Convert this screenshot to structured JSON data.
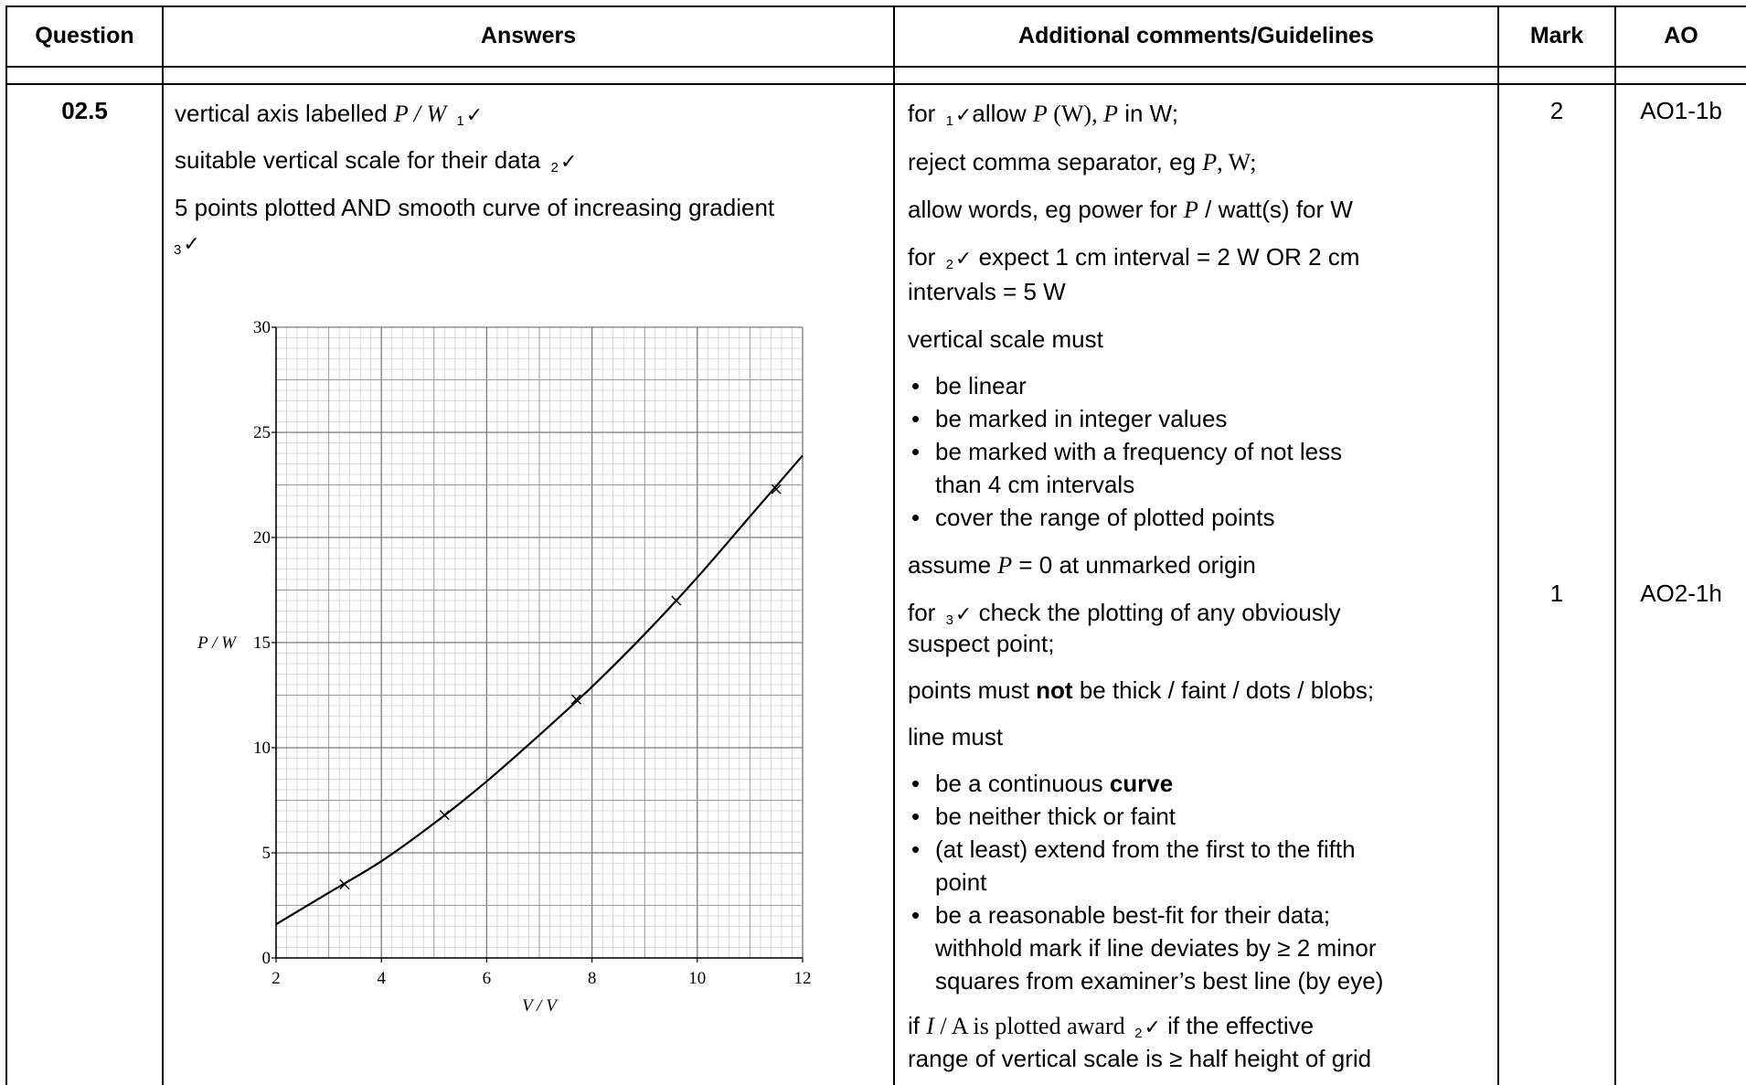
{
  "header": {
    "question": "Question",
    "answers": "Answers",
    "comments": "Additional comments/Guidelines",
    "mark": "Mark",
    "ao": "AO"
  },
  "row": {
    "question_number": "02.5",
    "answers": {
      "line1_text": "vertical axis labelled ",
      "line1_math": "P / W",
      "tick1": "1",
      "line2_text": "suitable vertical scale for their data",
      "tick2": "2",
      "line3_text": "5 points plotted AND smooth curve of increasing gradient",
      "tick3": "3",
      "check": "✓"
    },
    "marks": [
      "2",
      "1"
    ],
    "aos": [
      "AO1-1b",
      "AO2-1h"
    ],
    "comments": {
      "c1_pre": "for ",
      "c1_tick": "1",
      "c1_mid": "allow ",
      "c1_math1": "P",
      "c1_unit1": " (W), ",
      "c1_math2": "P",
      "c1_post": " in W;",
      "c2_pre": "reject comma separator, eg ",
      "c2_math": "P",
      "c2_post": ", W;",
      "c3_pre": "allow words, eg power for ",
      "c3_math": "P",
      "c3_post": " / watt(s) for W",
      "c4_pre": "for ",
      "c4_tick": "2",
      "c4_post": " expect 1 cm interval = 2 W OR 2 cm",
      "c4_line2": "intervals = 5 W",
      "c5": "vertical scale must",
      "bullets1": [
        "be linear",
        "be marked in integer values",
        "be marked with a frequency of not less",
        "than 4 cm intervals",
        "cover the range of plotted points"
      ],
      "c6_pre": "assume ",
      "c6_math": "P",
      "c6_post": " = 0 at unmarked origin",
      "c7_pre": "for ",
      "c7_tick": "3",
      "c7_post": " check the plotting of any obviously",
      "c7_line2": "suspect point;",
      "c8_pre": "points must ",
      "c8_bold": "not",
      "c8_post": " be thick / faint / dots / blobs;",
      "c9": "line must",
      "bullets2_1_pre": "be a continuous ",
      "bullets2_1_bold": "curve",
      "bullets2_2": "be neither thick or faint",
      "bullets2_3a": "(at least) extend from the first to the fifth",
      "bullets2_3b": "point",
      "bullets2_4a": "be a reasonable best-fit for their data;",
      "bullets2_4b": "withhold mark if line deviates by ≥ 2 minor",
      "bullets2_4c": "squares from examiner’s best line (by eye)",
      "c10_pre": "if ",
      "c10_math": "I",
      "c10_mid": " / A is plotted award ",
      "c10_tick": "2",
      "c10_post": " if the effective",
      "c10_line2": "range of vertical scale is ≥ half height of grid"
    }
  },
  "chart_data": {
    "type": "scatter",
    "xlabel": "V / V",
    "ylabel": "P / W",
    "xlim": [
      2,
      12
    ],
    "ylim": [
      0,
      30
    ],
    "xticks": [
      2,
      4,
      6,
      8,
      10,
      12
    ],
    "yticks": [
      0,
      5,
      10,
      15,
      20,
      25,
      30
    ],
    "grid": true,
    "points": [
      {
        "x": 3.3,
        "y": 3.5
      },
      {
        "x": 5.2,
        "y": 6.8
      },
      {
        "x": 7.7,
        "y": 12.3
      },
      {
        "x": 9.6,
        "y": 17.0
      },
      {
        "x": 11.5,
        "y": 22.3
      }
    ],
    "curve": [
      {
        "x": 2.0,
        "y": 1.6
      },
      {
        "x": 3.0,
        "y": 3.1
      },
      {
        "x": 4.0,
        "y": 4.6
      },
      {
        "x": 5.0,
        "y": 6.4
      },
      {
        "x": 6.0,
        "y": 8.4
      },
      {
        "x": 7.0,
        "y": 10.6
      },
      {
        "x": 8.0,
        "y": 12.9
      },
      {
        "x": 9.0,
        "y": 15.4
      },
      {
        "x": 10.0,
        "y": 18.1
      },
      {
        "x": 11.0,
        "y": 21.0
      },
      {
        "x": 12.0,
        "y": 23.9
      }
    ]
  }
}
